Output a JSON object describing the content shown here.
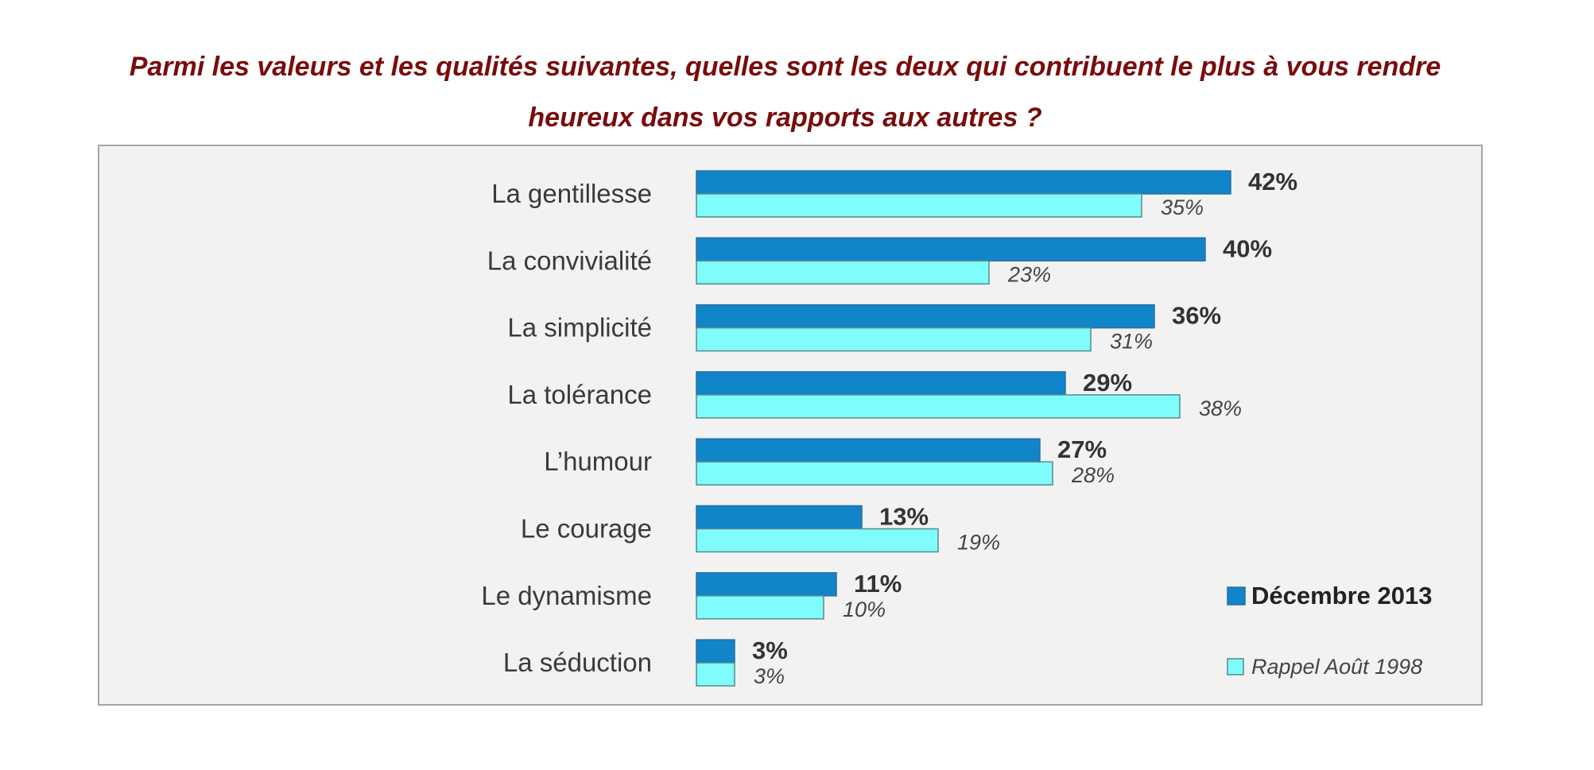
{
  "title_lines": [
    "Parmi les valeurs et les qualités suivantes, quelles sont les deux qui contribuent le plus à vous rendre",
    "heureux dans vos rapports aux autres ?"
  ],
  "chart_data": {
    "type": "bar",
    "orientation": "horizontal",
    "title": "Parmi les valeurs et les qualités suivantes, quelles sont les deux qui contribuent le plus à vous rendre heureux dans vos rapports aux autres ?",
    "categories": [
      "La gentillesse",
      "La convivialité",
      "La simplicité",
      "La tolérance",
      "L’humour",
      "Le courage",
      "Le dynamisme",
      "La séduction"
    ],
    "series": [
      {
        "name": "Décembre 2013",
        "values": [
          42,
          40,
          36,
          29,
          27,
          13,
          11,
          3
        ],
        "labels": [
          "42%",
          "40%",
          "36%",
          "29%",
          "27%",
          "13%",
          "11%",
          "3%"
        ],
        "color": "#1185c9"
      },
      {
        "name": "Rappel Août 1998",
        "values": [
          35,
          23,
          31,
          38,
          28,
          19,
          10,
          3
        ],
        "labels": [
          "35%",
          "23%",
          "31%",
          "38%",
          "28%",
          "19%",
          "10%",
          "3%"
        ],
        "color": "#7ffcfc"
      }
    ],
    "unit": "%",
    "grid": false,
    "legend_position": "bottom-right",
    "background": "#f2f2f2"
  }
}
